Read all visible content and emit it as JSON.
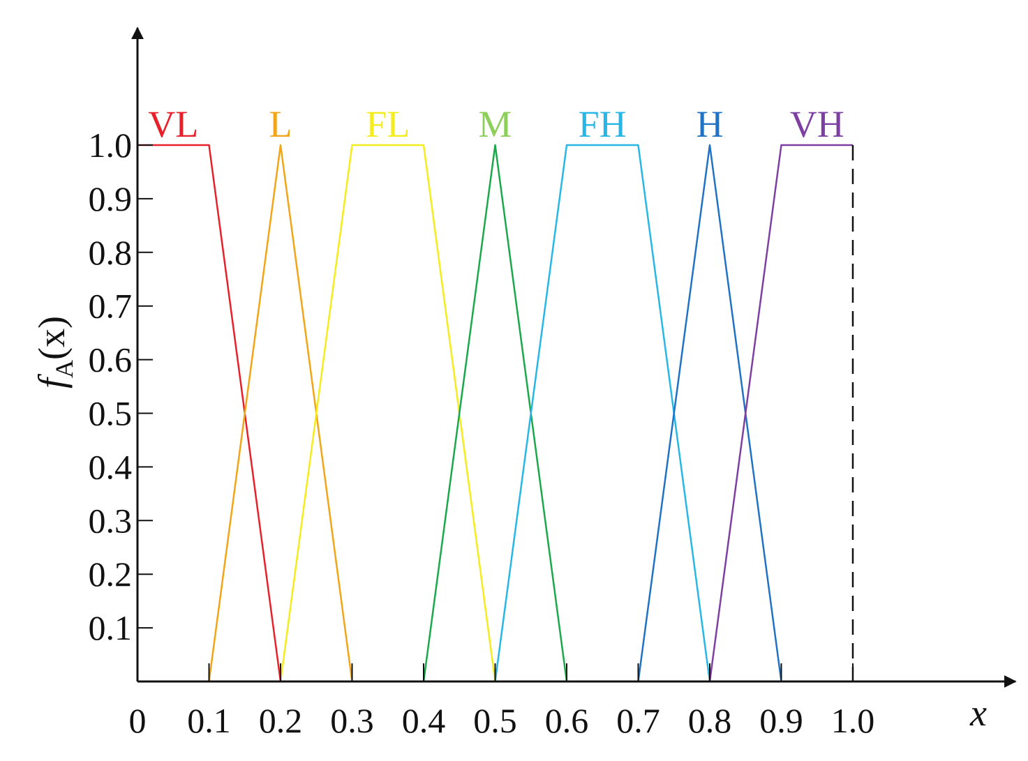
{
  "chart_data": {
    "type": "line",
    "title": "",
    "xlabel": "x",
    "ylabel_main": "f",
    "ylabel_sub": "A",
    "ylabel_tail": "(x)",
    "xlim": [
      0,
      1.0
    ],
    "ylim": [
      0,
      1.0
    ],
    "x_ticks": [
      "0",
      "0.1",
      "0.2",
      "0.3",
      "0.4",
      "0.5",
      "0.6",
      "0.7",
      "0.8",
      "0.9",
      "1.0"
    ],
    "x_tick_values": [
      0,
      0.1,
      0.2,
      0.3,
      0.4,
      0.5,
      0.6,
      0.7,
      0.8,
      0.9,
      1.0
    ],
    "y_ticks": [
      "0.1",
      "0.2",
      "0.3",
      "0.4",
      "0.5",
      "0.6",
      "0.7",
      "0.8",
      "0.9",
      "1.0"
    ],
    "y_tick_values": [
      0.1,
      0.2,
      0.3,
      0.4,
      0.5,
      0.6,
      0.7,
      0.8,
      0.9,
      1.0
    ],
    "grid": false,
    "reference_line": {
      "x": 1.0,
      "style": "dashed",
      "color": "#111111"
    },
    "series": [
      {
        "name": "VL",
        "color": "#e8202a",
        "points": [
          [
            0,
            1
          ],
          [
            0.1,
            1
          ],
          [
            0.2,
            0
          ]
        ]
      },
      {
        "name": "L",
        "color": "#f2a516",
        "points": [
          [
            0.1,
            0
          ],
          [
            0.2,
            1
          ],
          [
            0.3,
            0
          ]
        ]
      },
      {
        "name": "FL",
        "color": "#f4ec1c",
        "points": [
          [
            0.2,
            0
          ],
          [
            0.3,
            1
          ],
          [
            0.4,
            1
          ],
          [
            0.5,
            0
          ]
        ]
      },
      {
        "name": "M",
        "color": "#1aa84a",
        "label_color": "#8ccf5a",
        "points": [
          [
            0.4,
            0
          ],
          [
            0.5,
            1
          ],
          [
            0.6,
            0
          ]
        ]
      },
      {
        "name": "FH",
        "color": "#27b7e6",
        "points": [
          [
            0.5,
            0
          ],
          [
            0.6,
            1
          ],
          [
            0.7,
            1
          ],
          [
            0.8,
            0
          ]
        ]
      },
      {
        "name": "H",
        "color": "#1f72c4",
        "points": [
          [
            0.7,
            0
          ],
          [
            0.8,
            1
          ],
          [
            0.9,
            0
          ]
        ]
      },
      {
        "name": "VH",
        "color": "#7e3fa3",
        "points": [
          [
            0.8,
            0
          ],
          [
            0.9,
            1
          ],
          [
            1.0,
            1
          ]
        ]
      }
    ]
  }
}
